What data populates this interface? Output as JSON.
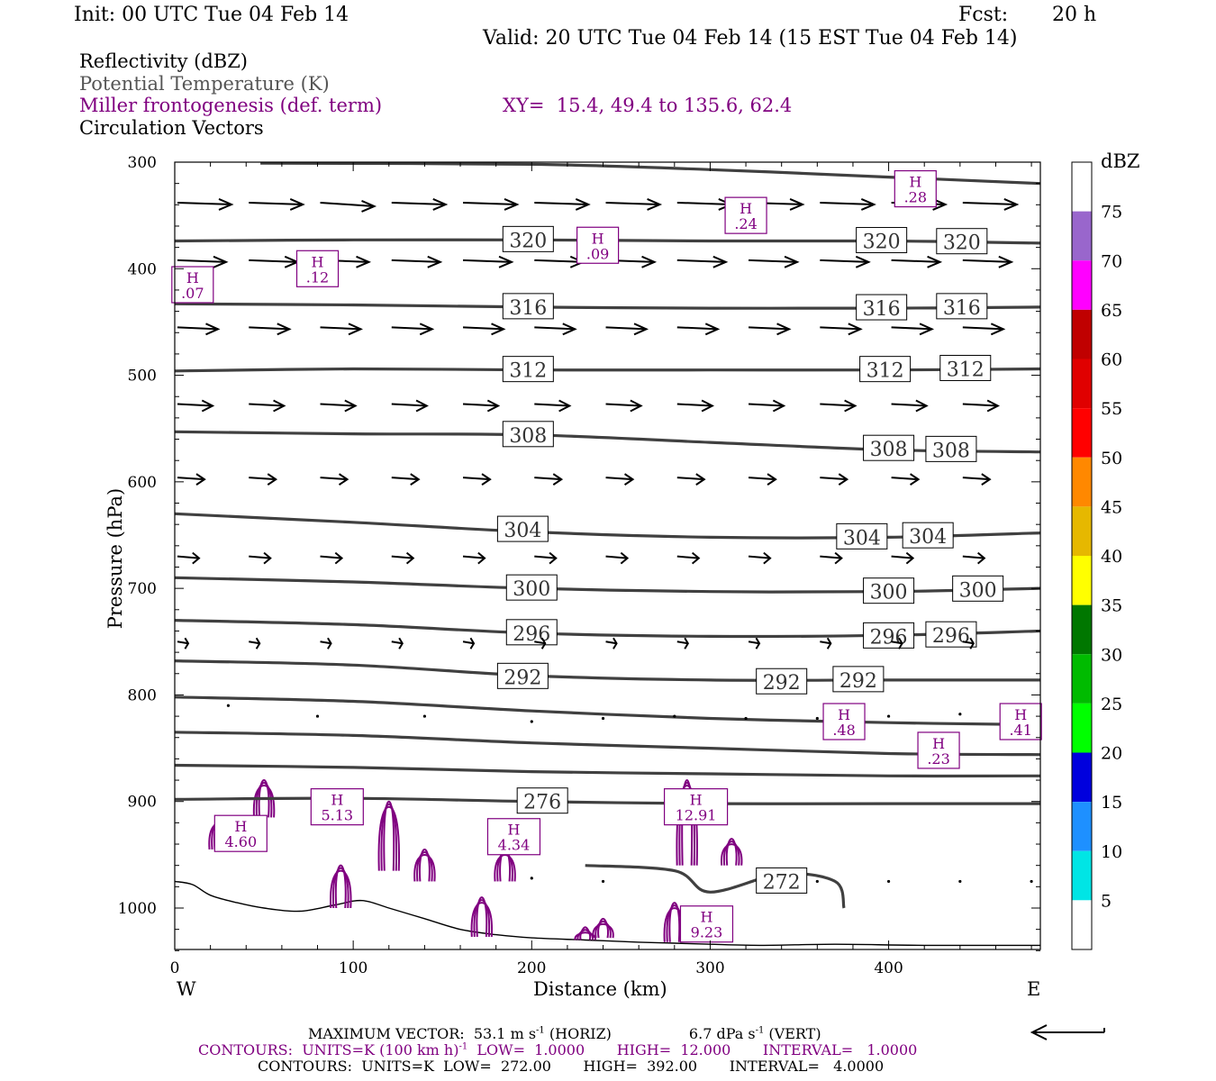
{
  "header": {
    "init": "Init: 00 UTC Tue 04 Feb 14",
    "fcst_label": "Fcst:",
    "fcst_value": "20 h",
    "valid": "Valid: 20 UTC Tue 04 Feb 14 (15 EST Tue 04 Feb 14)"
  },
  "fields": {
    "reflectivity": "Reflectivity (dBZ)",
    "theta": "Potential Temperature (K)",
    "frontogenesis": "Miller frontogenesis (def. term)",
    "xy": "XY=  15.4, 49.4 to 135.6, 62.4",
    "vectors": "Circulation Vectors"
  },
  "colors": {
    "theta": "#404040",
    "frontogenesis": "#800080",
    "terrain": "#000000"
  },
  "chart_data": {
    "type": "line",
    "xlabel": "Distance (km)",
    "ylabel": "Pressure (hPa)",
    "xlim": [
      0,
      485
    ],
    "ylim": [
      1040,
      300
    ],
    "x_ticks": [
      0,
      100,
      200,
      300,
      400
    ],
    "y_ticks": [
      300,
      400,
      500,
      600,
      700,
      800,
      900,
      1000
    ],
    "x_tick_labels": [
      "0",
      "100",
      "200",
      "300",
      "400"
    ],
    "y_tick_labels": [
      "300",
      "400",
      "500",
      "600",
      "700",
      "800",
      "900",
      "1000"
    ],
    "west_label": "W",
    "east_label": "E",
    "theta_contours": [
      {
        "value": 272,
        "label": "272",
        "x": [
          230,
          280,
          300,
          340,
          370,
          375
        ],
        "p": [
          960,
          965,
          985,
          968,
          975,
          1000
        ],
        "label_x": 340,
        "label_p": 975
      },
      {
        "value": 276,
        "label": "276",
        "x": [
          0,
          100,
          200,
          300,
          400,
          485
        ],
        "p": [
          898,
          897,
          900,
          902,
          902,
          902
        ],
        "label_x": 206,
        "label_p": 900
      },
      {
        "value": 280,
        "label": "",
        "x": [
          0,
          100,
          200,
          300,
          400,
          485
        ],
        "p": [
          866,
          868,
          872,
          874,
          876,
          876
        ],
        "label_x": null,
        "label_p": null
      },
      {
        "value": 284,
        "label": "",
        "x": [
          0,
          100,
          200,
          300,
          400,
          485
        ],
        "p": [
          835,
          838,
          845,
          850,
          855,
          856
        ],
        "label_x": null,
        "label_p": null
      },
      {
        "value": 288,
        "label": "",
        "x": [
          0,
          100,
          200,
          300,
          400,
          485
        ],
        "p": [
          802,
          806,
          815,
          822,
          826,
          828
        ],
        "label_x": null,
        "label_p": null
      },
      {
        "value": 292,
        "label": "292",
        "x": [
          0,
          100,
          200,
          300,
          400,
          485
        ],
        "p": [
          768,
          772,
          782,
          786,
          786,
          786
        ],
        "label_x": [
          195,
          340,
          383
        ],
        "label_p": [
          783,
          788,
          786
        ]
      },
      {
        "value": 296,
        "label": "296",
        "x": [
          0,
          100,
          200,
          300,
          400,
          485
        ],
        "p": [
          730,
          734,
          742,
          745,
          744,
          740
        ],
        "label_x": [
          200,
          400,
          435
        ],
        "label_p": [
          742,
          745,
          744
        ]
      },
      {
        "value": 300,
        "label": "300",
        "x": [
          0,
          100,
          200,
          300,
          400,
          485
        ],
        "p": [
          690,
          694,
          700,
          703,
          703,
          700
        ],
        "label_x": [
          200,
          400,
          450
        ],
        "label_p": [
          700,
          703,
          701
        ]
      },
      {
        "value": 304,
        "label": "304",
        "x": [
          0,
          100,
          200,
          300,
          400,
          485
        ],
        "p": [
          630,
          638,
          647,
          652,
          652,
          648
        ],
        "label_x": [
          195,
          385,
          422
        ],
        "label_p": [
          645,
          652,
          651
        ]
      },
      {
        "value": 308,
        "label": "308",
        "x": [
          0,
          100,
          200,
          300,
          400,
          485
        ],
        "p": [
          553,
          555,
          556,
          563,
          570,
          572
        ],
        "label_x": [
          198,
          400,
          435
        ],
        "label_p": [
          556,
          569,
          570
        ]
      },
      {
        "value": 312,
        "label": "312",
        "x": [
          0,
          100,
          200,
          300,
          400,
          485
        ],
        "p": [
          496,
          494,
          495,
          495,
          495,
          494
        ],
        "label_x": [
          198,
          398,
          443
        ],
        "label_p": [
          495,
          495,
          494
        ]
      },
      {
        "value": 316,
        "label": "316",
        "x": [
          0,
          100,
          200,
          300,
          400,
          485
        ],
        "p": [
          433,
          434,
          436,
          437,
          437,
          436
        ],
        "label_x": [
          198,
          396,
          441
        ],
        "label_p": [
          436,
          437,
          436
        ]
      },
      {
        "value": 320,
        "label": "320",
        "x": [
          0,
          100,
          200,
          300,
          400,
          485
        ],
        "p": [
          374,
          373,
          373,
          374,
          374,
          376
        ],
        "label_x": [
          198,
          396,
          441
        ],
        "label_p": [
          373,
          374,
          375
        ]
      },
      {
        "value": 324,
        "label": "",
        "x": [
          48,
          200,
          300,
          400,
          485
        ],
        "p": [
          301,
          302,
          307,
          314,
          320
        ],
        "label_x": null,
        "label_p": null
      }
    ],
    "terrain": {
      "x": [
        0,
        10,
        20,
        35,
        50,
        70,
        90,
        105,
        120,
        140,
        160,
        180,
        200,
        230,
        260,
        280,
        300,
        330,
        370,
        420,
        485
      ],
      "p": [
        975,
        978,
        988,
        995,
        1000,
        1003,
        997,
        993,
        1000,
        1010,
        1020,
        1025,
        1028,
        1030,
        1032,
        1033,
        1034,
        1035,
        1034,
        1035,
        1035
      ]
    },
    "frontogenesis_maxima": [
      {
        "label": "H",
        "value": ".07",
        "x": 10,
        "p": 415
      },
      {
        "label": "H",
        "value": ".12",
        "x": 80,
        "p": 400
      },
      {
        "label": "H",
        "value": ".09",
        "x": 237,
        "p": 378
      },
      {
        "label": "H",
        "value": ".24",
        "x": 320,
        "p": 350
      },
      {
        "label": "H",
        "value": ".28",
        "x": 415,
        "p": 325
      },
      {
        "label": "H",
        "value": ".48",
        "x": 375,
        "p": 825
      },
      {
        "label": "H",
        "value": ".41",
        "x": 474,
        "p": 825
      },
      {
        "label": "H",
        "value": ".23",
        "x": 428,
        "p": 852
      },
      {
        "label": "H",
        "value": "5.13",
        "x": 91,
        "p": 905
      },
      {
        "label": "H",
        "value": "12.91",
        "x": 292,
        "p": 905
      },
      {
        "label": "H",
        "value": "4.60",
        "x": 37,
        "p": 930
      },
      {
        "label": "H",
        "value": "4.34",
        "x": 190,
        "p": 933
      },
      {
        "label": "H",
        "value": "9.23",
        "x": 298,
        "p": 1015
      }
    ],
    "frontogenesis_contours": {
      "unit": "K (100 km h)^-1",
      "low": 1.0,
      "high": 12.0,
      "interval": 1.0,
      "features": [
        {
          "x": 25,
          "p_top": 915,
          "p_bottom": 945
        },
        {
          "x": 50,
          "p_top": 880,
          "p_bottom": 915
        },
        {
          "x": 93,
          "p_top": 960,
          "p_bottom": 1000
        },
        {
          "x": 120,
          "p_top": 900,
          "p_bottom": 965
        },
        {
          "x": 140,
          "p_top": 945,
          "p_bottom": 975
        },
        {
          "x": 172,
          "p_top": 990,
          "p_bottom": 1027
        },
        {
          "x": 185,
          "p_top": 945,
          "p_bottom": 975
        },
        {
          "x": 230,
          "p_top": 1018,
          "p_bottom": 1030
        },
        {
          "x": 240,
          "p_top": 1010,
          "p_bottom": 1028
        },
        {
          "x": 287,
          "p_top": 880,
          "p_bottom": 960
        },
        {
          "x": 312,
          "p_top": 935,
          "p_bottom": 960
        },
        {
          "x": 280,
          "p_top": 995,
          "p_bottom": 1032
        }
      ]
    },
    "vectors": {
      "scale_ms": 53.1,
      "rows": [
        {
          "p": 338,
          "x": [
            0,
            40,
            80,
            120,
            160,
            200,
            240,
            280,
            320,
            360,
            400,
            440
          ],
          "u": [
            40,
            40,
            40,
            40,
            40,
            40,
            40,
            40,
            40,
            40,
            40,
            40
          ],
          "w": [
            1,
            1,
            2,
            1,
            1,
            1,
            1,
            1,
            1,
            1,
            1,
            1
          ]
        },
        {
          "p": 392,
          "x": [
            0,
            40,
            80,
            120,
            160,
            200,
            240,
            280,
            320,
            360,
            400,
            440
          ],
          "u": [
            36,
            36,
            36,
            36,
            36,
            36,
            36,
            36,
            36,
            36,
            36,
            36
          ],
          "w": [
            1,
            1,
            1,
            1,
            1,
            1,
            1,
            1,
            1,
            1,
            1,
            1
          ]
        },
        {
          "p": 455,
          "x": [
            0,
            40,
            80,
            120,
            160,
            200,
            240,
            280,
            320,
            360,
            400,
            440
          ],
          "u": [
            30,
            30,
            30,
            30,
            30,
            30,
            30,
            30,
            30,
            30,
            30,
            30
          ],
          "w": [
            1,
            1,
            1,
            1,
            1,
            1,
            1,
            1,
            1,
            1,
            1,
            1
          ]
        },
        {
          "p": 527,
          "x": [
            0,
            40,
            80,
            120,
            160,
            200,
            240,
            280,
            320,
            360,
            400,
            440
          ],
          "u": [
            26,
            26,
            26,
            26,
            26,
            26,
            26,
            26,
            26,
            26,
            26,
            26
          ],
          "w": [
            1,
            1,
            1,
            1,
            1,
            1,
            1,
            1,
            1,
            1,
            1,
            1
          ]
        },
        {
          "p": 596,
          "x": [
            0,
            40,
            80,
            120,
            160,
            200,
            240,
            280,
            320,
            360,
            400,
            440
          ],
          "u": [
            20,
            20,
            20,
            20,
            20,
            20,
            20,
            20,
            20,
            20,
            20,
            20
          ],
          "w": [
            1,
            1,
            1,
            1,
            1,
            1,
            1,
            1,
            1,
            1,
            1,
            1
          ]
        },
        {
          "p": 670,
          "x": [
            0,
            40,
            80,
            120,
            160,
            200,
            240,
            280,
            320,
            360,
            400,
            440
          ],
          "u": [
            16,
            16,
            16,
            16,
            16,
            16,
            16,
            16,
            16,
            16,
            16,
            16
          ],
          "w": [
            1,
            1,
            1,
            1,
            1,
            1,
            1,
            1,
            1,
            1,
            1,
            1
          ]
        },
        {
          "p": 750,
          "x": [
            0,
            40,
            80,
            120,
            160,
            200,
            240,
            280,
            320,
            360,
            400,
            440
          ],
          "u": [
            8,
            8,
            8,
            8,
            8,
            8,
            8,
            8,
            8,
            8,
            8,
            8
          ],
          "w": [
            1,
            1,
            1,
            1,
            1,
            1,
            1,
            1,
            1,
            1,
            1,
            1
          ]
        }
      ]
    },
    "colorbar": {
      "unit": "dBZ",
      "labels": [
        "75",
        "70",
        "65",
        "60",
        "55",
        "50",
        "45",
        "40",
        "35",
        "30",
        "25",
        "20",
        "15",
        "10",
        "5"
      ],
      "colors": [
        "#9966cc",
        "#ff00ff",
        "#c00000",
        "#e00000",
        "#ff0000",
        "#ff8800",
        "#e6b800",
        "#ffff00",
        "#007700",
        "#00bb00",
        "#00ff00",
        "#0000dd",
        "#1e90ff",
        "#00e5e5"
      ]
    }
  },
  "footer": {
    "max_vector": "MAXIMUM VECTOR:  53.1 m s",
    "max_vector_exp": "-1",
    "horiz": " (HORIZ)",
    "vert_value": "6.7 dPa s",
    "vert_exp": "-1",
    "vert": " (VERT)",
    "fronto_line_a": "CONTOURS:  UNITS=K (100 km h)",
    "fronto_exp": "-1",
    "fronto_line_b": "  LOW=  1.0000       HIGH=  12.000       INTERVAL=   1.0000",
    "theta_line": "CONTOURS:  UNITS=K  LOW=  272.00       HIGH=  392.00       INTERVAL=   4.0000"
  }
}
